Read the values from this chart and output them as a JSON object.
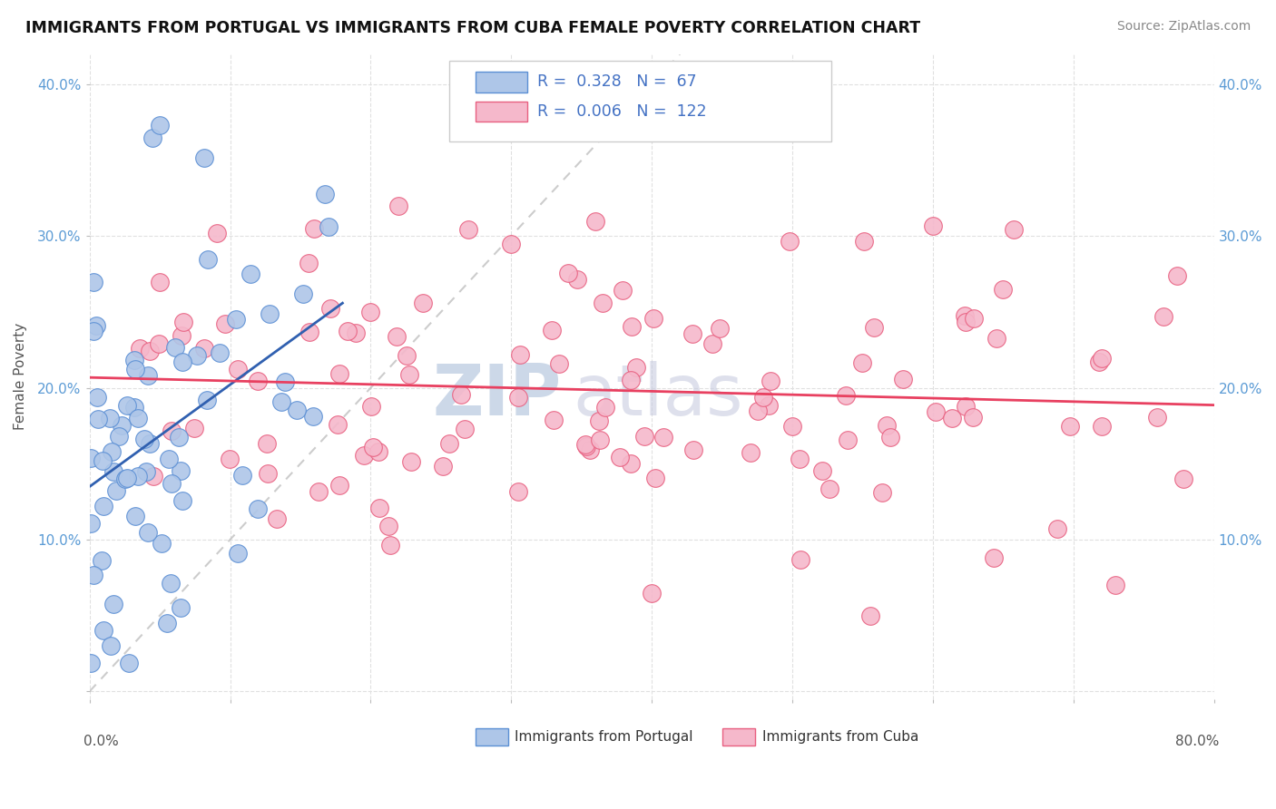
{
  "title": "IMMIGRANTS FROM PORTUGAL VS IMMIGRANTS FROM CUBA FEMALE POVERTY CORRELATION CHART",
  "source": "Source: ZipAtlas.com",
  "ylabel": "Female Poverty",
  "xlim": [
    0.0,
    0.8
  ],
  "ylim": [
    -0.005,
    0.42
  ],
  "portugal_R": 0.328,
  "portugal_N": 67,
  "cuba_R": 0.006,
  "cuba_N": 122,
  "portugal_color": "#aec6e8",
  "cuba_color": "#f5b8cb",
  "portugal_edge_color": "#5b8fd4",
  "cuba_edge_color": "#e86080",
  "portugal_line_color": "#3060b0",
  "cuba_line_color": "#e84060",
  "diagonal_color": "#c0c0c0",
  "tick_color": "#5b9bd5",
  "background_color": "#ffffff",
  "grid_color": "#e0e0e0",
  "legend_R_color": "#4472c4"
}
